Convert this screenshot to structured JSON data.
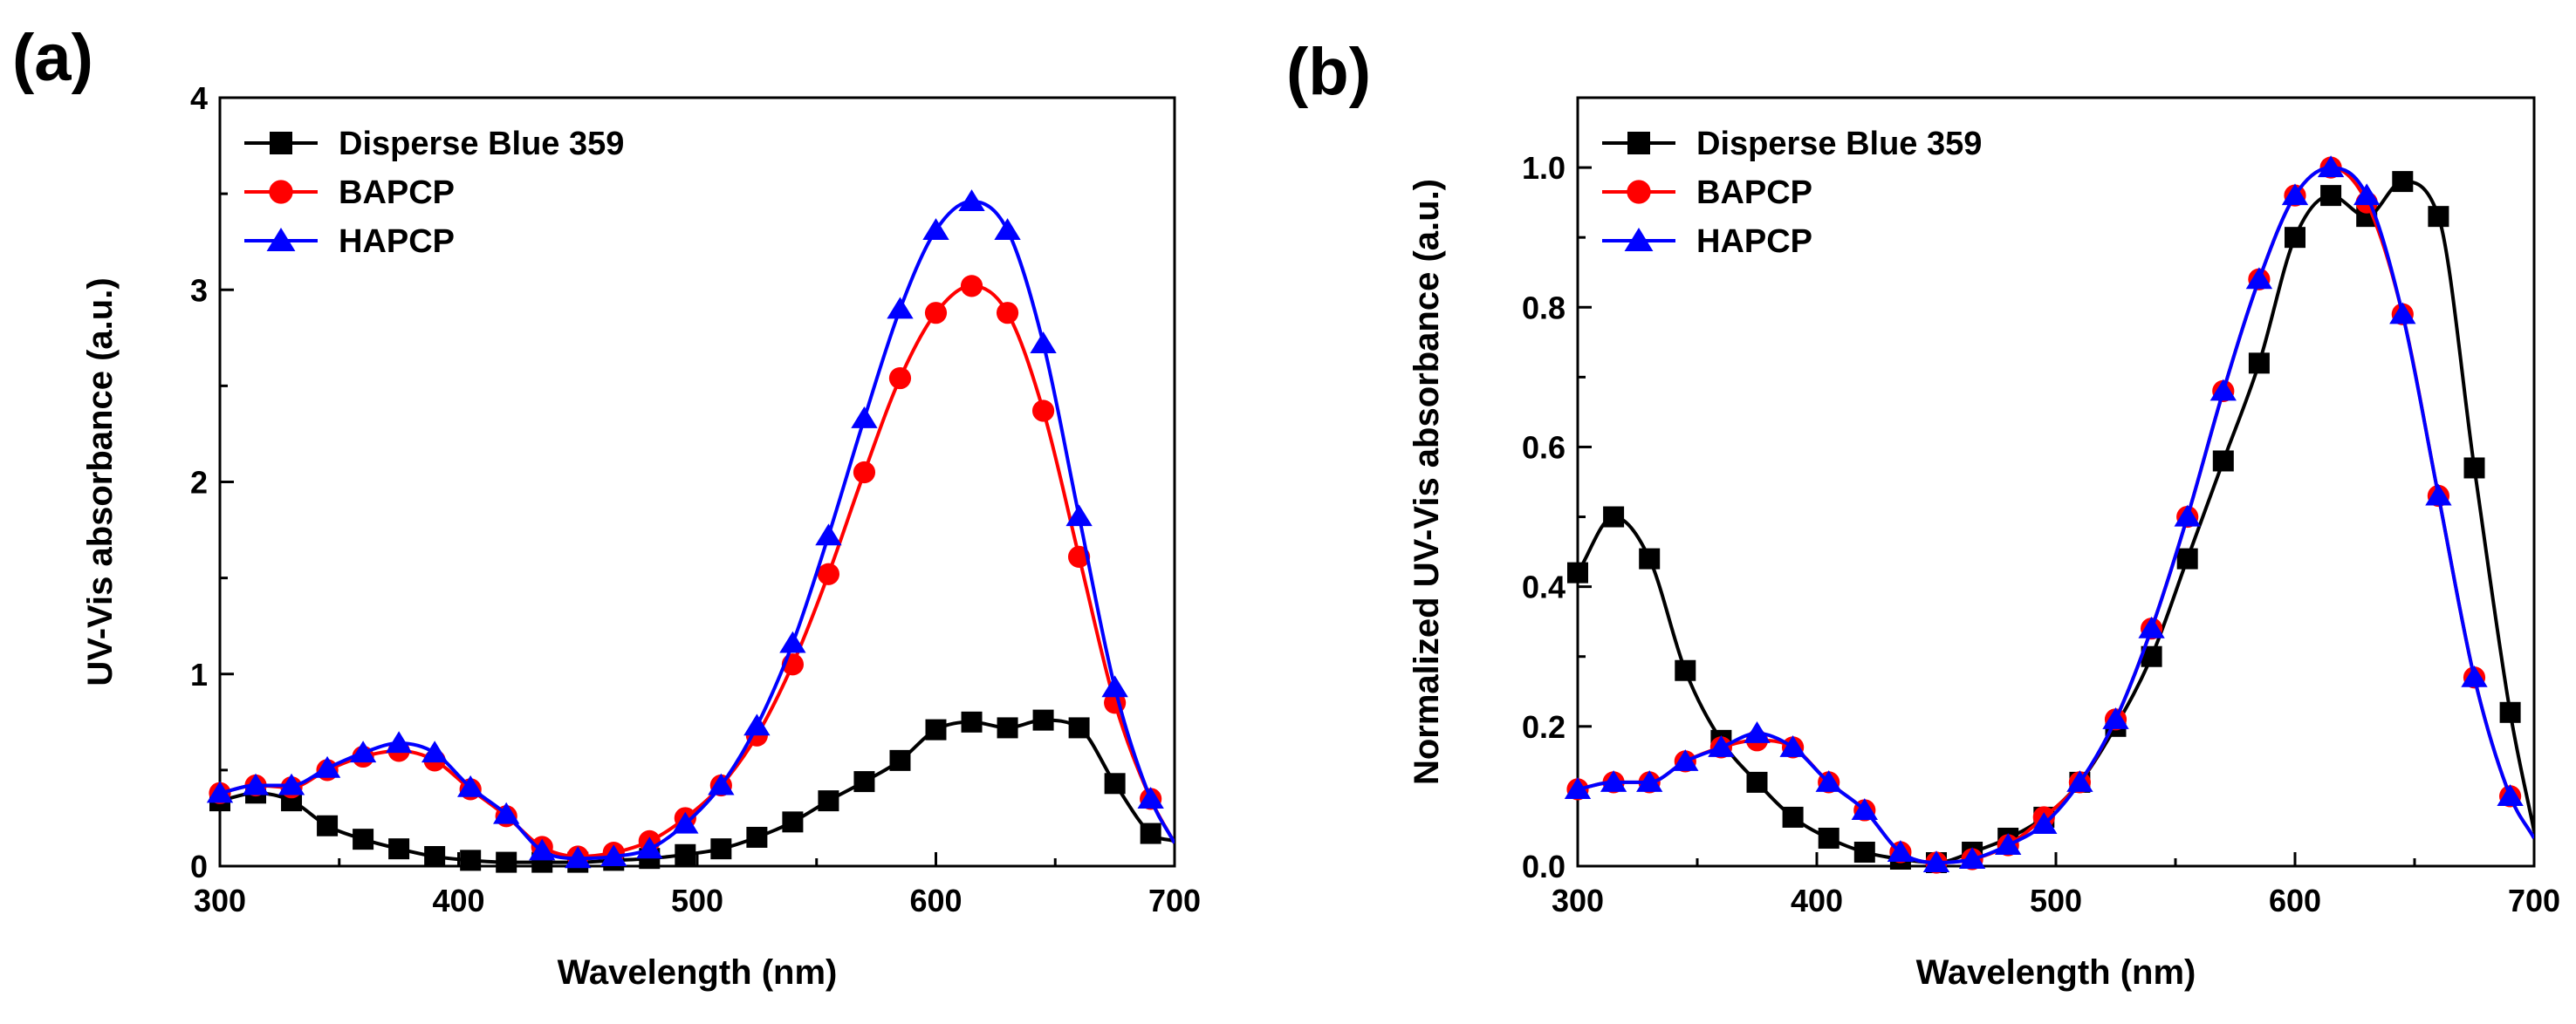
{
  "chart_data": [
    {
      "panel_label": "(a)",
      "type": "line",
      "xlabel": "Wavelength (nm)",
      "ylabel": "UV-Vis absorbance (a.u.)",
      "xlim": [
        300,
        700
      ],
      "ylim": [
        0,
        4
      ],
      "xticks": [
        300,
        400,
        500,
        600,
        700
      ],
      "yticks": [
        0,
        1,
        2,
        3,
        4
      ],
      "grid": false,
      "legend_position": "top-left",
      "series": [
        {
          "name": "Disperse Blue 359",
          "color": "#000000",
          "marker": "square",
          "x": [
            300,
            315,
            330,
            345,
            360,
            375,
            390,
            405,
            420,
            435,
            450,
            465,
            480,
            495,
            510,
            525,
            540,
            555,
            570,
            585,
            600,
            615,
            630,
            645,
            660,
            675,
            690,
            700
          ],
          "y": [
            0.34,
            0.38,
            0.34,
            0.21,
            0.14,
            0.09,
            0.05,
            0.03,
            0.02,
            0.02,
            0.02,
            0.03,
            0.04,
            0.06,
            0.09,
            0.15,
            0.23,
            0.34,
            0.44,
            0.55,
            0.71,
            0.75,
            0.72,
            0.76,
            0.72,
            0.43,
            0.17,
            0.13
          ]
        },
        {
          "name": "BAPCP",
          "color": "#ff0000",
          "marker": "circle",
          "x": [
            300,
            315,
            330,
            345,
            360,
            375,
            390,
            405,
            420,
            435,
            450,
            465,
            480,
            495,
            510,
            525,
            540,
            555,
            570,
            585,
            600,
            615,
            630,
            645,
            660,
            675,
            690,
            700
          ],
          "y": [
            0.38,
            0.42,
            0.41,
            0.5,
            0.57,
            0.6,
            0.55,
            0.4,
            0.26,
            0.1,
            0.05,
            0.07,
            0.13,
            0.25,
            0.42,
            0.68,
            1.05,
            1.52,
            2.05,
            2.54,
            2.88,
            3.02,
            2.88,
            2.37,
            1.61,
            0.85,
            0.35,
            0.12
          ]
        },
        {
          "name": "HAPCP",
          "color": "#0000ff",
          "marker": "triangle",
          "x": [
            300,
            315,
            330,
            345,
            360,
            375,
            390,
            405,
            420,
            435,
            450,
            465,
            480,
            495,
            510,
            525,
            540,
            555,
            570,
            585,
            600,
            615,
            630,
            645,
            660,
            675,
            690,
            700
          ],
          "y": [
            0.38,
            0.42,
            0.42,
            0.51,
            0.59,
            0.64,
            0.59,
            0.41,
            0.27,
            0.08,
            0.04,
            0.05,
            0.09,
            0.22,
            0.42,
            0.73,
            1.16,
            1.72,
            2.33,
            2.9,
            3.31,
            3.46,
            3.31,
            2.72,
            1.82,
            0.93,
            0.35,
            0.12
          ]
        }
      ]
    },
    {
      "panel_label": "(b)",
      "type": "line",
      "xlabel": "Wavelength (nm)",
      "ylabel": "Normalized UV-Vis absorbance (a.u.)",
      "xlim": [
        300,
        700
      ],
      "ylim": [
        0,
        1.1
      ],
      "xticks": [
        300,
        400,
        500,
        600,
        700
      ],
      "yticks": [
        0.0,
        0.2,
        0.4,
        0.6,
        0.8,
        1.0
      ],
      "ytick_labels": [
        "0.0",
        "0.2",
        "0.4",
        "0.6",
        "0.8",
        "1.0"
      ],
      "grid": false,
      "legend_position": "top-left",
      "series": [
        {
          "name": "Disperse Blue 359",
          "color": "#000000",
          "marker": "square",
          "x": [
            300,
            315,
            330,
            345,
            360,
            375,
            390,
            405,
            420,
            435,
            450,
            465,
            480,
            495,
            510,
            525,
            540,
            555,
            570,
            585,
            600,
            615,
            630,
            645,
            660,
            675,
            690,
            700
          ],
          "y": [
            0.42,
            0.5,
            0.44,
            0.28,
            0.18,
            0.12,
            0.07,
            0.04,
            0.02,
            0.01,
            0.005,
            0.02,
            0.04,
            0.07,
            0.12,
            0.2,
            0.3,
            0.44,
            0.58,
            0.72,
            0.9,
            0.96,
            0.93,
            0.98,
            0.93,
            0.57,
            0.22,
            0.05
          ]
        },
        {
          "name": "BAPCP",
          "color": "#ff0000",
          "marker": "circle",
          "x": [
            300,
            315,
            330,
            345,
            360,
            375,
            390,
            405,
            420,
            435,
            450,
            465,
            480,
            495,
            510,
            525,
            540,
            555,
            570,
            585,
            600,
            615,
            630,
            645,
            660,
            675,
            690,
            700
          ],
          "y": [
            0.11,
            0.12,
            0.12,
            0.15,
            0.17,
            0.18,
            0.17,
            0.12,
            0.08,
            0.02,
            0.005,
            0.01,
            0.03,
            0.07,
            0.12,
            0.21,
            0.34,
            0.5,
            0.68,
            0.84,
            0.96,
            1.0,
            0.95,
            0.79,
            0.53,
            0.27,
            0.1,
            0.04
          ]
        },
        {
          "name": "HAPCP",
          "color": "#0000ff",
          "marker": "triangle",
          "x": [
            300,
            315,
            330,
            345,
            360,
            375,
            390,
            405,
            420,
            435,
            450,
            465,
            480,
            495,
            510,
            525,
            540,
            555,
            570,
            585,
            600,
            615,
            630,
            645,
            660,
            675,
            690,
            700
          ],
          "y": [
            0.11,
            0.12,
            0.12,
            0.15,
            0.17,
            0.19,
            0.17,
            0.12,
            0.08,
            0.02,
            0.005,
            0.01,
            0.03,
            0.06,
            0.12,
            0.21,
            0.34,
            0.5,
            0.68,
            0.84,
            0.96,
            1.0,
            0.96,
            0.79,
            0.53,
            0.27,
            0.1,
            0.04
          ]
        }
      ]
    }
  ]
}
